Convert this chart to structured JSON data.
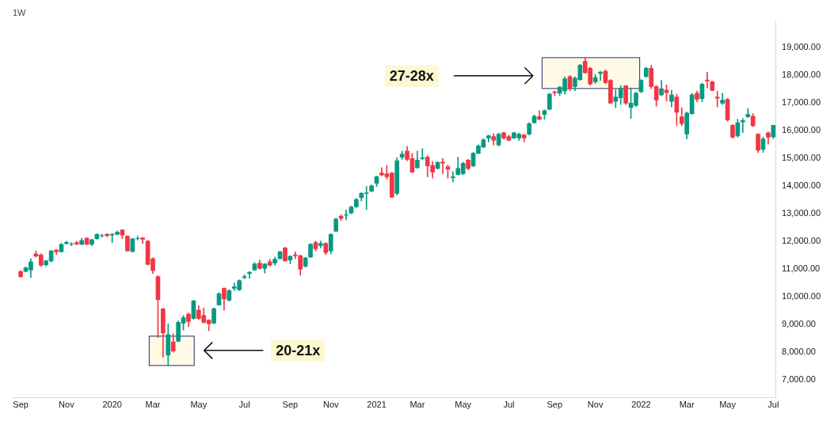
{
  "chart_data": {
    "type": "candlestick",
    "title": "1W",
    "x": [
      "2019-09-02",
      "2019-09-09",
      "2019-09-16",
      "2019-09-23",
      "2019-09-30",
      "2019-10-07",
      "2019-10-14",
      "2019-10-21",
      "2019-10-28",
      "2019-11-04",
      "2019-11-11",
      "2019-11-18",
      "2019-11-25",
      "2019-12-02",
      "2019-12-09",
      "2019-12-16",
      "2019-12-23",
      "2019-12-30",
      "2020-01-06",
      "2020-01-13",
      "2020-01-20",
      "2020-01-27",
      "2020-02-03",
      "2020-02-10",
      "2020-02-17",
      "2020-02-24",
      "2020-03-02",
      "2020-03-09",
      "2020-03-16",
      "2020-03-23",
      "2020-03-30",
      "2020-04-06",
      "2020-04-13",
      "2020-04-20",
      "2020-04-27",
      "2020-05-04",
      "2020-05-11",
      "2020-05-18",
      "2020-05-25",
      "2020-06-01",
      "2020-06-08",
      "2020-06-15",
      "2020-06-22",
      "2020-06-29",
      "2020-07-06",
      "2020-07-13",
      "2020-07-20",
      "2020-07-27",
      "2020-08-03",
      "2020-08-10",
      "2020-08-17",
      "2020-08-24",
      "2020-08-31",
      "2020-09-07",
      "2020-09-14",
      "2020-09-21",
      "2020-09-28",
      "2020-10-05",
      "2020-10-12",
      "2020-10-19",
      "2020-10-26",
      "2020-11-02",
      "2020-11-09",
      "2020-11-16",
      "2020-11-23",
      "2020-11-30",
      "2020-12-07",
      "2020-12-14",
      "2020-12-21",
      "2020-12-28",
      "2021-01-04",
      "2021-01-11",
      "2021-01-18",
      "2021-01-25",
      "2021-02-01",
      "2021-02-08",
      "2021-02-15",
      "2021-02-22",
      "2021-03-01",
      "2021-03-08",
      "2021-03-15",
      "2021-03-22",
      "2021-03-29",
      "2021-04-05",
      "2021-04-12",
      "2021-04-19",
      "2021-04-26",
      "2021-05-03",
      "2021-05-10",
      "2021-05-17",
      "2021-05-24",
      "2021-05-31",
      "2021-06-07",
      "2021-06-14",
      "2021-06-21",
      "2021-06-28",
      "2021-07-05",
      "2021-07-12",
      "2021-07-19",
      "2021-07-26",
      "2021-08-02",
      "2021-08-09",
      "2021-08-16",
      "2021-08-23",
      "2021-08-30",
      "2021-09-06",
      "2021-09-13",
      "2021-09-20",
      "2021-09-27",
      "2021-10-04",
      "2021-10-11",
      "2021-10-18",
      "2021-10-25",
      "2021-11-01",
      "2021-11-08",
      "2021-11-15",
      "2021-11-22",
      "2021-11-29",
      "2021-12-06",
      "2021-12-13",
      "2021-12-20",
      "2021-12-27",
      "2022-01-03",
      "2022-01-10",
      "2022-01-17",
      "2022-01-24",
      "2022-01-31",
      "2022-02-07",
      "2022-02-14",
      "2022-02-21",
      "2022-02-28",
      "2022-03-07",
      "2022-03-14",
      "2022-03-21",
      "2022-03-28",
      "2022-04-04",
      "2022-04-11",
      "2022-04-18",
      "2022-04-25",
      "2022-05-02",
      "2022-05-09",
      "2022-05-16",
      "2022-05-23",
      "2022-05-30",
      "2022-06-06",
      "2022-06-13",
      "2022-06-20",
      "2022-06-27",
      "2022-07-04"
    ],
    "ohlc": [
      [
        10920,
        10950,
        10700,
        10730
      ],
      [
        10920,
        11080,
        10900,
        11050
      ],
      [
        10970,
        11380,
        10700,
        11270
      ],
      [
        11550,
        11660,
        11440,
        11470
      ],
      [
        11520,
        11560,
        11100,
        11140
      ],
      [
        11160,
        11320,
        11110,
        11300
      ],
      [
        11300,
        11680,
        11250,
        11660
      ],
      [
        11690,
        11720,
        11530,
        11630
      ],
      [
        11630,
        11950,
        11620,
        11900
      ],
      [
        11930,
        12020,
        11900,
        11970
      ],
      [
        11900,
        11960,
        11850,
        11910
      ],
      [
        11960,
        12010,
        11880,
        11910
      ],
      [
        11900,
        12120,
        11880,
        12040
      ],
      [
        12120,
        12150,
        11880,
        11900
      ],
      [
        11900,
        12080,
        11850,
        12070
      ],
      [
        12100,
        12280,
        12080,
        12260
      ],
      [
        12210,
        12270,
        12160,
        12220
      ],
      [
        12260,
        12290,
        12170,
        12210
      ],
      [
        12230,
        12300,
        11960,
        12260
      ],
      [
        12260,
        12380,
        12240,
        12340
      ],
      [
        12420,
        12430,
        12100,
        12230
      ],
      [
        12200,
        12210,
        11650,
        11660
      ],
      [
        11640,
        12120,
        11620,
        12100
      ],
      [
        12100,
        12200,
        12050,
        12110
      ],
      [
        12130,
        12150,
        11930,
        12080
      ],
      [
        12010,
        12050,
        11160,
        11170
      ],
      [
        11380,
        11420,
        10840,
        10950
      ],
      [
        10730,
        10760,
        8530,
        9900
      ],
      [
        9570,
        9570,
        7820,
        8700
      ],
      [
        7900,
        9030,
        7520,
        8640
      ],
      [
        8370,
        8670,
        8000,
        8040
      ],
      [
        8400,
        9130,
        8370,
        9080
      ],
      [
        9050,
        9330,
        8800,
        9250
      ],
      [
        9380,
        9420,
        8920,
        9110
      ],
      [
        9220,
        9880,
        9190,
        9850
      ],
      [
        9520,
        9680,
        9180,
        9220
      ],
      [
        9330,
        9600,
        9050,
        9080
      ],
      [
        9160,
        9180,
        8780,
        9030
      ],
      [
        9050,
        9600,
        9030,
        9570
      ],
      [
        9710,
        10150,
        9700,
        10120
      ],
      [
        10310,
        10330,
        9520,
        9930
      ],
      [
        9880,
        10260,
        9850,
        10230
      ],
      [
        10310,
        10500,
        10230,
        10370
      ],
      [
        10260,
        10620,
        10230,
        10590
      ],
      [
        10700,
        10800,
        10650,
        10730
      ],
      [
        10840,
        10920,
        10670,
        10890
      ],
      [
        10970,
        11240,
        10950,
        11190
      ],
      [
        11220,
        11330,
        11000,
        11030
      ],
      [
        11030,
        11210,
        10860,
        11190
      ],
      [
        11270,
        11360,
        11110,
        11140
      ],
      [
        11220,
        11440,
        11140,
        11360
      ],
      [
        11380,
        11650,
        11370,
        11630
      ],
      [
        11770,
        11800,
        11280,
        11300
      ],
      [
        11330,
        11490,
        11190,
        11470
      ],
      [
        11520,
        11630,
        11380,
        11490
      ],
      [
        11490,
        11510,
        10780,
        11000
      ],
      [
        11110,
        11430,
        11080,
        11410
      ],
      [
        11440,
        11930,
        11420,
        11900
      ],
      [
        11960,
        12020,
        11660,
        11740
      ],
      [
        11850,
        12020,
        11770,
        11930
      ],
      [
        11930,
        11960,
        11520,
        11600
      ],
      [
        11660,
        12290,
        11550,
        12260
      ],
      [
        12370,
        12850,
        12350,
        12810
      ],
      [
        12920,
        12960,
        12750,
        12840
      ],
      [
        12950,
        13140,
        12780,
        12970
      ],
      [
        13030,
        13280,
        13000,
        13250
      ],
      [
        13250,
        13560,
        13230,
        13520
      ],
      [
        13580,
        13770,
        13470,
        13740
      ],
      [
        13740,
        13990,
        13160,
        13760
      ],
      [
        13820,
        14050,
        13800,
        14010
      ],
      [
        14100,
        14370,
        13990,
        14340
      ],
      [
        14480,
        14670,
        14370,
        14400
      ],
      [
        14450,
        14750,
        14260,
        14340
      ],
      [
        14480,
        14500,
        13590,
        13600
      ],
      [
        13740,
        15030,
        13680,
        14920
      ],
      [
        15050,
        15270,
        14970,
        15160
      ],
      [
        15270,
        15440,
        14920,
        14970
      ],
      [
        15000,
        15190,
        14480,
        14510
      ],
      [
        14670,
        15270,
        14640,
        14940
      ],
      [
        15000,
        15360,
        14950,
        15030
      ],
      [
        15050,
        15100,
        14340,
        14730
      ],
      [
        14750,
        14890,
        14290,
        14510
      ],
      [
        14640,
        14880,
        14620,
        14860
      ],
      [
        14870,
        15000,
        14450,
        14830
      ],
      [
        14700,
        14760,
        14290,
        14620
      ],
      [
        14300,
        14530,
        14150,
        14340
      ],
      [
        14420,
        15050,
        14400,
        14640
      ],
      [
        14450,
        14870,
        14420,
        14830
      ],
      [
        14940,
        14970,
        14590,
        14640
      ],
      [
        14730,
        15220,
        14700,
        15190
      ],
      [
        15190,
        15500,
        15170,
        15460
      ],
      [
        15410,
        15720,
        15390,
        15680
      ],
      [
        15740,
        15850,
        15600,
        15820
      ],
      [
        15790,
        15900,
        15490,
        15660
      ],
      [
        15490,
        15920,
        15450,
        15880
      ],
      [
        15930,
        15960,
        15700,
        15740
      ],
      [
        15790,
        15850,
        15630,
        15660
      ],
      [
        15740,
        15960,
        15720,
        15930
      ],
      [
        15740,
        15920,
        15650,
        15880
      ],
      [
        15850,
        15880,
        15600,
        15740
      ],
      [
        15880,
        16300,
        15850,
        16260
      ],
      [
        16290,
        16570,
        16270,
        16530
      ],
      [
        16510,
        16730,
        16400,
        16420
      ],
      [
        16590,
        16760,
        16420,
        16730
      ],
      [
        16780,
        17360,
        16760,
        17330
      ],
      [
        17410,
        17440,
        17270,
        17380
      ],
      [
        17360,
        17610,
        17270,
        17580
      ],
      [
        17440,
        17950,
        17330,
        17880
      ],
      [
        17960,
        18000,
        17450,
        17520
      ],
      [
        17600,
        17950,
        17450,
        17900
      ],
      [
        17850,
        18400,
        17820,
        18370
      ],
      [
        18510,
        18640,
        18080,
        18100
      ],
      [
        18260,
        18300,
        17650,
        17690
      ],
      [
        17770,
        18040,
        17710,
        17930
      ],
      [
        18070,
        18150,
        17820,
        18120
      ],
      [
        18150,
        18210,
        17700,
        17740
      ],
      [
        17820,
        17850,
        16990,
        17000
      ],
      [
        17060,
        17490,
        16840,
        17220
      ],
      [
        17190,
        17640,
        16950,
        17520
      ],
      [
        17630,
        17640,
        16950,
        17000
      ],
      [
        16840,
        17550,
        16450,
        17000
      ],
      [
        16920,
        17400,
        16880,
        17360
      ],
      [
        17410,
        17850,
        17380,
        17820
      ],
      [
        17960,
        18300,
        17930,
        18260
      ],
      [
        18260,
        18370,
        17520,
        17600
      ],
      [
        17600,
        17640,
        16890,
        17110
      ],
      [
        17300,
        17820,
        17270,
        17520
      ],
      [
        17470,
        17660,
        17080,
        17380
      ],
      [
        17060,
        17470,
        16860,
        17300
      ],
      [
        17220,
        17330,
        16200,
        16670
      ],
      [
        16510,
        16840,
        16180,
        16260
      ],
      [
        15880,
        16680,
        15710,
        16640
      ],
      [
        16620,
        17360,
        16590,
        17300
      ],
      [
        17360,
        17440,
        17050,
        17140
      ],
      [
        17160,
        17720,
        17050,
        17690
      ],
      [
        17840,
        18120,
        17550,
        17800
      ],
      [
        17770,
        17800,
        17440,
        17460
      ],
      [
        17220,
        17440,
        16860,
        17180
      ],
      [
        17000,
        17360,
        16950,
        17110
      ],
      [
        17140,
        17170,
        16340,
        16400
      ],
      [
        16200,
        16230,
        15740,
        15770
      ],
      [
        15820,
        16420,
        15770,
        16290
      ],
      [
        16320,
        16450,
        15930,
        16370
      ],
      [
        16510,
        16810,
        16480,
        16590
      ],
      [
        16530,
        16620,
        16150,
        16180
      ],
      [
        15880,
        15900,
        15220,
        15300
      ],
      [
        15330,
        15770,
        15220,
        15710
      ],
      [
        15930,
        15960,
        15520,
        15770
      ],
      [
        15780,
        16210,
        15710,
        16200
      ]
    ],
    "xticks": [
      {
        "value": "2019-09-02",
        "label": "Sep"
      },
      {
        "value": "2019-11-04",
        "label": "Nov"
      },
      {
        "value": "2020-01-06",
        "label": "2020"
      },
      {
        "value": "2020-03-02",
        "label": "Mar"
      },
      {
        "value": "2020-05-04",
        "label": "May"
      },
      {
        "value": "2020-07-06",
        "label": "Jul"
      },
      {
        "value": "2020-09-07",
        "label": "Sep"
      },
      {
        "value": "2020-11-02",
        "label": "Nov"
      },
      {
        "value": "2021-01-04",
        "label": "2021"
      },
      {
        "value": "2021-03-01",
        "label": "Mar"
      },
      {
        "value": "2021-05-03",
        "label": "May"
      },
      {
        "value": "2021-07-05",
        "label": "Jul"
      },
      {
        "value": "2021-09-06",
        "label": "Sep"
      },
      {
        "value": "2021-11-01",
        "label": "Nov"
      },
      {
        "value": "2022-01-03",
        "label": "2022"
      },
      {
        "value": "2022-03-07",
        "label": "Mar"
      },
      {
        "value": "2022-05-02",
        "label": "May"
      },
      {
        "value": "2022-07-04",
        "label": "Jul"
      }
    ],
    "xlim": [
      "2019-08-22",
      "2022-07-07"
    ],
    "ylim": [
      6350,
      19950
    ],
    "yticks": [
      {
        "value": 7000,
        "label": "7,000.00"
      },
      {
        "value": 8000,
        "label": "8,000.00"
      },
      {
        "value": 9000,
        "label": "9,000.00"
      },
      {
        "value": 10000,
        "label": "10,000.00"
      },
      {
        "value": 11000,
        "label": "11,000.00"
      },
      {
        "value": 12000,
        "label": "12,000.00"
      },
      {
        "value": 13000,
        "label": "13,000.00"
      },
      {
        "value": 14000,
        "label": "14,000.00"
      },
      {
        "value": 15000,
        "label": "15,000.00"
      },
      {
        "value": 16000,
        "label": "16,000.00"
      },
      {
        "value": 17000,
        "label": "17,000.00"
      },
      {
        "value": 18000,
        "label": "18,000.00"
      },
      {
        "value": 19000,
        "label": "19,000.00"
      }
    ],
    "annotations": [
      "20-21x",
      "27-28x"
    ]
  }
}
